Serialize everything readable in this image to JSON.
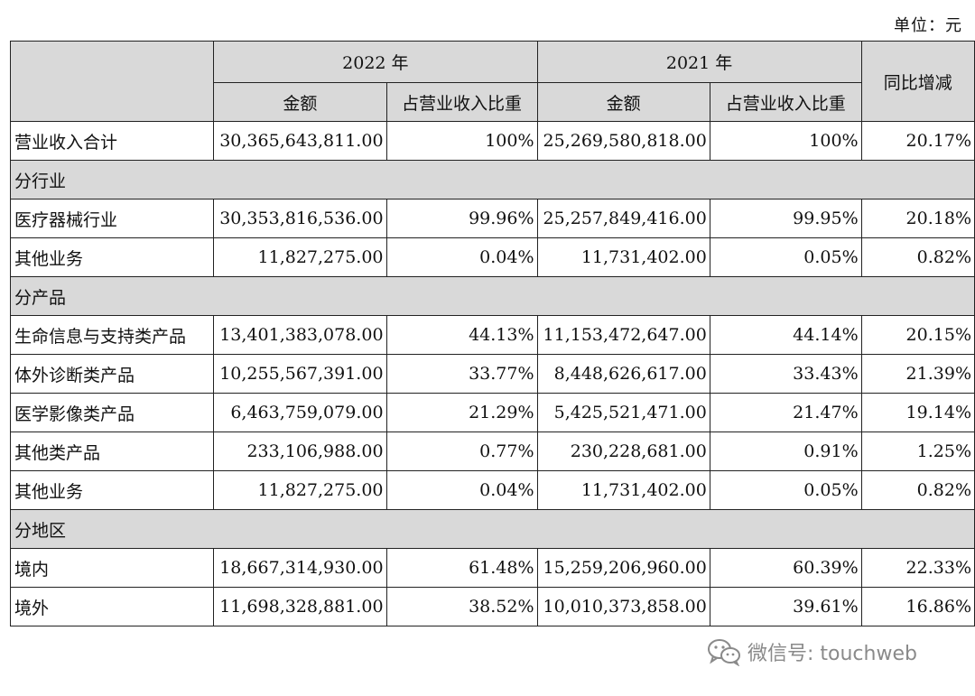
{
  "unit_label": "单位：元",
  "header": {
    "year_2022": "2022 年",
    "year_2021": "2021 年",
    "amount": "金额",
    "share": "占营业收入比重",
    "yoy": "同比增减"
  },
  "rows": [
    {
      "label": "营业收入合计",
      "a2022": "30,365,643,811.00",
      "s2022": "100%",
      "a2021": "25,269,580,818.00",
      "s2021": "100%",
      "yoy": "20.17%"
    },
    {
      "section": "分行业"
    },
    {
      "label": "医疗器械行业",
      "a2022": "30,353,816,536.00",
      "s2022": "99.96%",
      "a2021": "25,257,849,416.00",
      "s2021": "99.95%",
      "yoy": "20.18%"
    },
    {
      "label": "其他业务",
      "a2022": "11,827,275.00",
      "s2022": "0.04%",
      "a2021": "11,731,402.00",
      "s2021": "0.05%",
      "yoy": "0.82%"
    },
    {
      "section": "分产品"
    },
    {
      "label": "生命信息与支持类产品",
      "a2022": "13,401,383,078.00",
      "s2022": "44.13%",
      "a2021": "11,153,472,647.00",
      "s2021": "44.14%",
      "yoy": "20.15%"
    },
    {
      "label": "体外诊断类产品",
      "a2022": "10,255,567,391.00",
      "s2022": "33.77%",
      "a2021": "8,448,626,617.00",
      "s2021": "33.43%",
      "yoy": "21.39%"
    },
    {
      "label": "医学影像类产品",
      "a2022": "6,463,759,079.00",
      "s2022": "21.29%",
      "a2021": "5,425,521,471.00",
      "s2021": "21.47%",
      "yoy": "19.14%"
    },
    {
      "label": "其他类产品",
      "a2022": "233,106,988.00",
      "s2022": "0.77%",
      "a2021": "230,228,681.00",
      "s2021": "0.91%",
      "yoy": "1.25%"
    },
    {
      "label": "其他业务",
      "a2022": "11,827,275.00",
      "s2022": "0.04%",
      "a2021": "11,731,402.00",
      "s2021": "0.05%",
      "yoy": "0.82%"
    },
    {
      "section": "分地区"
    },
    {
      "label": "境内",
      "a2022": "18,667,314,930.00",
      "s2022": "61.48%",
      "a2021": "15,259,206,960.00",
      "s2021": "60.39%",
      "yoy": "22.33%"
    },
    {
      "label": "境外",
      "a2022": "11,698,328,881.00",
      "s2022": "38.52%",
      "a2021": "10,010,373,858.00",
      "s2021": "39.61%",
      "yoy": "16.86%"
    }
  ],
  "watermark": {
    "text": "微信号: touchweb",
    "icon": "wechat-icon",
    "color": "#8a8a8a"
  },
  "colors": {
    "header_fill": "#d9d9d9",
    "border": "#222222"
  }
}
